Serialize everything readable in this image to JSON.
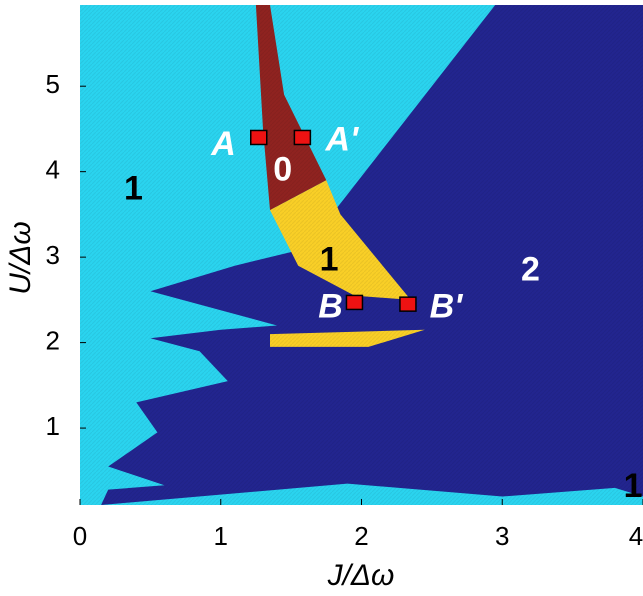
{
  "chart_data": {
    "type": "heatmap",
    "title": "",
    "xlabel": "J/Δω",
    "ylabel": "U/Δω",
    "xlim": [
      0,
      4
    ],
    "ylim": [
      0.1,
      5.95
    ],
    "x_ticks": [
      "0",
      "1",
      "2",
      "3",
      "4"
    ],
    "y_ticks": [
      "1",
      "2",
      "3",
      "4",
      "5"
    ],
    "colors": {
      "region_1": "#2ad4ef",
      "region_2": "#22258f",
      "region_0": "#8f2320",
      "region_1_inner": "#f9cf27",
      "marker": "#ee1212"
    },
    "regions": [
      {
        "label": "1",
        "value": 1,
        "color_key": "region_1",
        "outline": [
          [
            0.15,
            5.95
          ],
          [
            2.95,
            5.95
          ],
          [
            0.7,
            3.0
          ],
          [
            1.4,
            2.85
          ],
          [
            0.15,
            2.9
          ],
          [
            0.15,
            1.05
          ],
          [
            1.9,
            0.35
          ],
          [
            3.0,
            0.2
          ],
          [
            0.15,
            0.1
          ]
        ]
      },
      {
        "label": "2",
        "value": 2,
        "color_key": "region_2",
        "outline": [
          [
            2.95,
            5.95
          ],
          [
            4.0,
            5.95
          ],
          [
            4.0,
            0.2
          ],
          [
            3.8,
            0.3
          ],
          [
            3.0,
            0.2
          ],
          [
            1.9,
            0.35
          ],
          [
            0.15,
            0.1
          ],
          [
            0.2,
            0.28
          ],
          [
            0.6,
            0.33
          ],
          [
            0.2,
            0.55
          ],
          [
            0.55,
            0.95
          ],
          [
            0.4,
            1.3
          ],
          [
            1.05,
            1.55
          ],
          [
            0.85,
            1.9
          ],
          [
            0.5,
            2.05
          ],
          [
            1.0,
            2.15
          ],
          [
            1.4,
            2.2
          ],
          [
            0.5,
            2.6
          ],
          [
            1.1,
            2.9
          ],
          [
            1.6,
            3.1
          ],
          [
            2.95,
            5.95
          ]
        ]
      },
      {
        "label": "0",
        "value": 0,
        "color_key": "region_0",
        "outline": [
          [
            1.25,
            5.95
          ],
          [
            1.35,
            5.95
          ],
          [
            1.45,
            4.9
          ],
          [
            1.75,
            3.9
          ],
          [
            1.35,
            3.55
          ],
          [
            1.3,
            4.5
          ]
        ]
      },
      {
        "label": "1",
        "value": 1,
        "color_key": "region_1_inner",
        "outline": [
          [
            1.35,
            3.55
          ],
          [
            1.75,
            3.9
          ],
          [
            1.85,
            3.5
          ],
          [
            2.35,
            2.5
          ],
          [
            1.95,
            2.55
          ],
          [
            1.55,
            2.9
          ]
        ]
      },
      {
        "label": "1",
        "value": 1,
        "color_key": "region_1_inner",
        "outline": [
          [
            1.35,
            2.1
          ],
          [
            2.45,
            2.15
          ],
          [
            2.05,
            1.95
          ],
          [
            1.35,
            1.95
          ]
        ]
      }
    ],
    "region_labels": [
      {
        "text": "1",
        "x": 0.38,
        "y": 3.78,
        "color": "#000000"
      },
      {
        "text": "0",
        "x": 1.44,
        "y": 4.0,
        "color": "#ffffff"
      },
      {
        "text": "1",
        "x": 1.77,
        "y": 2.95,
        "color": "#000000"
      },
      {
        "text": "2",
        "x": 3.2,
        "y": 2.83,
        "color": "#ffffff"
      },
      {
        "text": "1",
        "x": 3.93,
        "y": 0.3,
        "color": "#000000"
      }
    ],
    "points": [
      {
        "name": "A",
        "x": 1.27,
        "y": 4.4
      },
      {
        "name": "A'",
        "x": 1.58,
        "y": 4.4
      },
      {
        "name": "B",
        "x": 1.95,
        "y": 2.47
      },
      {
        "name": "B'",
        "x": 2.33,
        "y": 2.45
      }
    ],
    "point_labels": [
      {
        "text": "A",
        "x": 1.02,
        "y": 4.3
      },
      {
        "text": "A'",
        "x": 1.86,
        "y": 4.35
      },
      {
        "text": "B",
        "x": 1.78,
        "y": 2.4
      },
      {
        "text": "B'",
        "x": 2.6,
        "y": 2.4
      }
    ],
    "grid": false,
    "legend": "none"
  }
}
